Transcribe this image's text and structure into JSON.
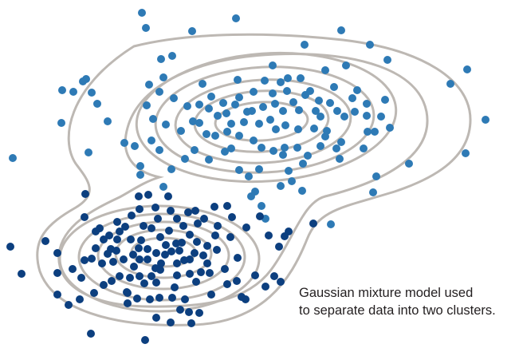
{
  "caption": {
    "line1": "Gaussian mixture model used",
    "line2": "to separate data into two clusters."
  },
  "colors": {
    "contour": "#bdb8b3",
    "cluster_upper": "#2e7ab5",
    "cluster_lower": "#0c3f7f",
    "caption_text": "#231f20"
  },
  "clusters": [
    {
      "name": "upper",
      "color_key": "cluster_upper",
      "points": [
        [
          178,
          16
        ],
        [
          296,
          23
        ],
        [
          183,
          35
        ],
        [
          241,
          39
        ],
        [
          428,
          38
        ],
        [
          382,
          56
        ],
        [
          464,
          56
        ],
        [
          216,
          70
        ],
        [
          202,
          74
        ],
        [
          104,
          102
        ],
        [
          108,
          99
        ],
        [
          78,
          113
        ],
        [
          92,
          115
        ],
        [
          115,
          116
        ],
        [
          122,
          130
        ],
        [
          77,
          154
        ],
        [
          135,
          152
        ],
        [
          187,
          106
        ],
        [
          205,
          97
        ],
        [
          254,
          105
        ],
        [
          298,
          100
        ],
        [
          342,
          82
        ],
        [
          352,
          103
        ],
        [
          361,
          98
        ],
        [
          377,
          98
        ],
        [
          408,
          88
        ],
        [
          434,
          82
        ],
        [
          486,
          75
        ],
        [
          565,
          105
        ],
        [
          586,
          87
        ],
        [
          609,
          150
        ],
        [
          584,
          192
        ],
        [
          513,
          205
        ],
        [
          472,
          221
        ],
        [
          468,
          241
        ],
        [
          415,
          281
        ],
        [
          470,
          165
        ],
        [
          489,
          160
        ],
        [
          460,
          145
        ],
        [
          461,
          165
        ],
        [
          456,
          186
        ],
        [
          442,
          123
        ],
        [
          483,
          125
        ],
        [
          235,
          133
        ],
        [
          250,
          131
        ],
        [
          265,
          121
        ],
        [
          280,
          129
        ],
        [
          295,
          131
        ],
        [
          310,
          140
        ],
        [
          330,
          134
        ],
        [
          345,
          130
        ],
        [
          355,
          139
        ],
        [
          368,
          128
        ],
        [
          383,
          119
        ],
        [
          389,
          114
        ],
        [
          414,
          129
        ],
        [
          423,
          139
        ],
        [
          432,
          146
        ],
        [
          402,
          146
        ],
        [
          410,
          164
        ],
        [
          394,
          161
        ],
        [
          358,
          157
        ],
        [
          325,
          155
        ],
        [
          306,
          153
        ],
        [
          290,
          155
        ],
        [
          285,
          165
        ],
        [
          300,
          170
        ],
        [
          318,
          176
        ],
        [
          328,
          185
        ],
        [
          343,
          189
        ],
        [
          357,
          185
        ],
        [
          373,
          185
        ],
        [
          386,
          195
        ],
        [
          402,
          183
        ],
        [
          422,
          186
        ],
        [
          426,
          199
        ],
        [
          428,
          178
        ],
        [
          408,
          171
        ],
        [
          380,
          205
        ],
        [
          362,
          214
        ],
        [
          325,
          212
        ],
        [
          300,
          213
        ],
        [
          282,
          190
        ],
        [
          262,
          200
        ],
        [
          244,
          188
        ],
        [
          232,
          199
        ],
        [
          215,
          212
        ],
        [
          176,
          208
        ],
        [
          200,
          188
        ],
        [
          190,
          176
        ],
        [
          169,
          183
        ],
        [
          156,
          179
        ],
        [
          208,
          156
        ],
        [
          192,
          149
        ],
        [
          184,
          132
        ],
        [
          227,
          164
        ],
        [
          259,
          168
        ],
        [
          273,
          145
        ],
        [
          218,
          123
        ],
        [
          200,
          115
        ],
        [
          332,
          101
        ],
        [
          342,
          117
        ],
        [
          360,
          114
        ],
        [
          318,
          115
        ],
        [
          300,
          122
        ],
        [
          284,
          142
        ],
        [
          262,
          136
        ],
        [
          250,
          154
        ],
        [
          242,
          152
        ],
        [
          270,
          170
        ],
        [
          290,
          186
        ],
        [
          339,
          150
        ],
        [
          316,
          139
        ],
        [
          375,
          138
        ],
        [
          400,
          126
        ],
        [
          419,
          109
        ],
        [
          445,
          140
        ],
        [
          448,
          113
        ],
        [
          460,
          130
        ],
        [
          478,
          146
        ],
        [
          346,
          162
        ],
        [
          374,
          162
        ],
        [
          396,
          139
        ],
        [
          352,
          233
        ],
        [
          366,
          227
        ],
        [
          320,
          240
        ],
        [
          312,
          221
        ],
        [
          315,
          246
        ],
        [
          328,
          258
        ],
        [
          333,
          274
        ],
        [
          379,
          239
        ],
        [
          355,
          194
        ],
        [
          16,
          198
        ],
        [
          111,
          191
        ],
        [
          176,
          219
        ],
        [
          205,
          234
        ]
      ]
    },
    {
      "name": "lower",
      "color_key": "cluster_lower",
      "points": [
        [
          107,
          243
        ],
        [
          106,
          272
        ],
        [
          125,
          286
        ],
        [
          137,
          295
        ],
        [
          147,
          278
        ],
        [
          157,
          284
        ],
        [
          174,
          246
        ],
        [
          186,
          244
        ],
        [
          175,
          262
        ],
        [
          195,
          260
        ],
        [
          211,
          246
        ],
        [
          214,
          264
        ],
        [
          236,
          266
        ],
        [
          245,
          264
        ],
        [
          248,
          280
        ],
        [
          230,
          283
        ],
        [
          212,
          289
        ],
        [
          201,
          297
        ],
        [
          190,
          286
        ],
        [
          177,
          301
        ],
        [
          164,
          300
        ],
        [
          147,
          300
        ],
        [
          139,
          312
        ],
        [
          130,
          300
        ],
        [
          120,
          290
        ],
        [
          120,
          311
        ],
        [
          142,
          328
        ],
        [
          155,
          325
        ],
        [
          168,
          334
        ],
        [
          175,
          325
        ],
        [
          185,
          325
        ],
        [
          202,
          330
        ],
        [
          222,
          330
        ],
        [
          238,
          325
        ],
        [
          255,
          320
        ],
        [
          260,
          330
        ],
        [
          252,
          341
        ],
        [
          238,
          343
        ],
        [
          222,
          345
        ],
        [
          201,
          338
        ],
        [
          190,
          346
        ],
        [
          175,
          346
        ],
        [
          163,
          348
        ],
        [
          150,
          346
        ],
        [
          140,
          352
        ],
        [
          130,
          357
        ],
        [
          118,
          367
        ],
        [
          100,
          375
        ],
        [
          86,
          382
        ],
        [
          72,
          369
        ],
        [
          57,
          302
        ],
        [
          72,
          317
        ],
        [
          72,
          342
        ],
        [
          27,
          343
        ],
        [
          13,
          309
        ],
        [
          102,
          348
        ],
        [
          106,
          326
        ],
        [
          91,
          337
        ],
        [
          128,
          330
        ],
        [
          115,
          324
        ],
        [
          160,
          367
        ],
        [
          172,
          374
        ],
        [
          160,
          380
        ],
        [
          188,
          375
        ],
        [
          200,
          373
        ],
        [
          216,
          373
        ],
        [
          232,
          375
        ],
        [
          237,
          391
        ],
        [
          226,
          388
        ],
        [
          214,
          404
        ],
        [
          196,
          398
        ],
        [
          240,
          405
        ],
        [
          250,
          392
        ],
        [
          265,
          369
        ],
        [
          285,
          356
        ],
        [
          297,
          352
        ],
        [
          303,
          372
        ],
        [
          308,
          375
        ],
        [
          320,
          345
        ],
        [
          333,
          359
        ],
        [
          344,
          346
        ],
        [
          352,
          353
        ],
        [
          357,
          296
        ],
        [
          362,
          290
        ],
        [
          350,
          309
        ],
        [
          337,
          295
        ],
        [
          326,
          271
        ],
        [
          309,
          285
        ],
        [
          291,
          272
        ],
        [
          289,
          297
        ],
        [
          298,
          323
        ],
        [
          273,
          283
        ],
        [
          270,
          295
        ],
        [
          260,
          308
        ],
        [
          247,
          303
        ],
        [
          244,
          317
        ],
        [
          238,
          294
        ],
        [
          228,
          304
        ],
        [
          225,
          314
        ],
        [
          215,
          315
        ],
        [
          207,
          319
        ],
        [
          196,
          317
        ],
        [
          185,
          312
        ],
        [
          174,
          311
        ],
        [
          167,
          319
        ],
        [
          146,
          314
        ],
        [
          135,
          318
        ],
        [
          150,
          290
        ],
        [
          165,
          270
        ],
        [
          180,
          283
        ],
        [
          198,
          274
        ],
        [
          222,
          274
        ],
        [
          256,
          274
        ],
        [
          269,
          259
        ],
        [
          285,
          258
        ],
        [
          272,
          313
        ],
        [
          282,
          337
        ],
        [
          263,
          342
        ],
        [
          246,
          353
        ],
        [
          219,
          360
        ],
        [
          196,
          354
        ],
        [
          181,
          355
        ],
        [
          159,
          366
        ],
        [
          114,
          418
        ],
        [
          182,
          426
        ],
        [
          393,
          280
        ],
        [
          208,
          307
        ],
        [
          221,
          305
        ],
        [
          231,
          326
        ],
        [
          195,
          336
        ]
      ]
    }
  ]
}
